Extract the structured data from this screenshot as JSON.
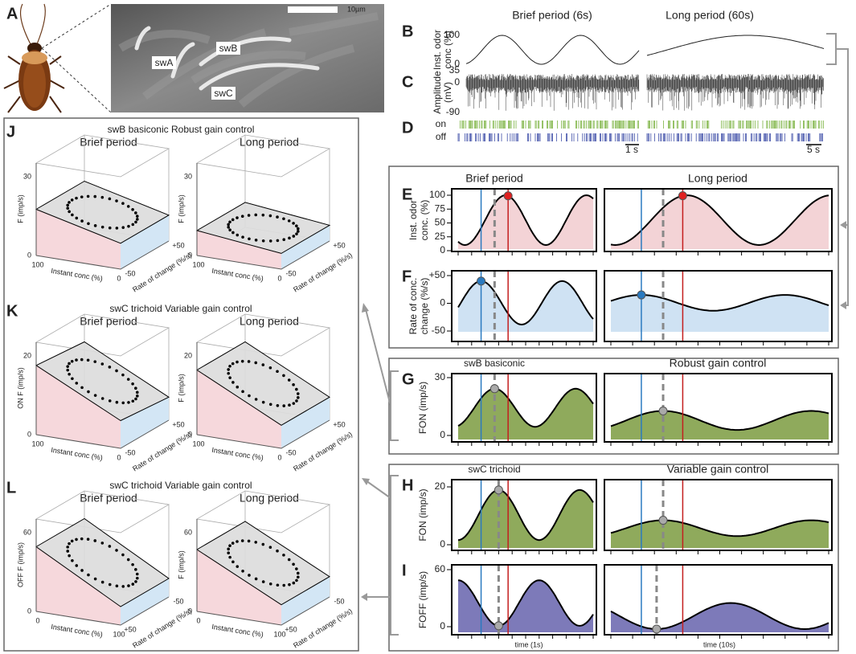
{
  "panel_A": {
    "letter": "A",
    "scale_bar": "10µm",
    "hair_labels": [
      "swA",
      "swB",
      "swC"
    ]
  },
  "panel_B": {
    "letter": "B",
    "titles": [
      "Brief period (6s)",
      "Long period (60s)"
    ],
    "y_label_lines": [
      "Inst. odor",
      "conc (%)"
    ],
    "yticks": [
      "100",
      "0"
    ]
  },
  "panel_C": {
    "letter": "C",
    "y_label_lines": [
      "Amplitude",
      "(mV)"
    ],
    "yticks": [
      "35",
      "0",
      "-90"
    ]
  },
  "panel_D": {
    "letter": "D",
    "rows": [
      "on",
      "off"
    ],
    "scale_bars": [
      "1 s",
      "5 s"
    ]
  },
  "panel_E": {
    "letter": "E",
    "titles": [
      "Brief period",
      "Long period"
    ],
    "y_label_lines": [
      "Inst. odor",
      "conc. (%)"
    ],
    "yticks": [
      "100",
      "75",
      "50",
      "25",
      "0"
    ]
  },
  "panel_F": {
    "letter": "F",
    "y_label_lines": [
      "Rate of conc.",
      "change (%/s)"
    ],
    "yticks": [
      "+50",
      "0",
      "-50"
    ]
  },
  "panel_G": {
    "letter": "G",
    "titles": [
      "swB basiconic",
      "Robust gain control"
    ],
    "y_label": "FON (imp/s)",
    "yticks": [
      "30",
      "0"
    ]
  },
  "panel_H": {
    "letter": "H",
    "titles": [
      "swC trichoid",
      "Variable gain control"
    ],
    "y_label": "FON (imp/s)",
    "yticks": [
      "20",
      "0"
    ]
  },
  "panel_I": {
    "letter": "I",
    "y_label": "FOFF (imp/s)",
    "yticks": [
      "60",
      "0"
    ],
    "x_labels": [
      "time (1s)",
      "time (10s)"
    ]
  },
  "panel_J": {
    "letter": "J",
    "title": "swB basiconic Robust gain control",
    "subtitles": [
      "Brief period",
      "Long period"
    ],
    "z_labels": [
      "F (imp/s)",
      "F (imp/s)"
    ],
    "zticks": [
      "30",
      "0"
    ],
    "x_label": "Instant conc (%)",
    "x_ticks": [
      "100",
      "0"
    ],
    "y_label": "Rate of change (%/s)",
    "y_ticks": [
      "-50",
      "+50"
    ]
  },
  "panel_K": {
    "letter": "K",
    "title": "swC trichoid Variable gain control",
    "subtitles": [
      "Brief period",
      "Long period"
    ],
    "z_labels": [
      "ON F (imp/s)",
      "F (imp/s)"
    ],
    "zticks": [
      "20",
      "0"
    ],
    "x_label": "Instant conc (%)",
    "x_ticks": [
      "100",
      "0"
    ],
    "y_label": "Rate of change (%/s)",
    "y_ticks": [
      "-50",
      "+50"
    ]
  },
  "panel_L": {
    "letter": "L",
    "title": "swC trichoid Variable gain control",
    "subtitles": [
      "Brief period",
      "Long period"
    ],
    "z_labels": [
      "OFF F (imp/s)",
      "F (imp/s)"
    ],
    "zticks": [
      "60",
      "0"
    ],
    "x_label": "Instant conc (%)",
    "x_ticks": [
      "0",
      "100"
    ],
    "y_label": "Rate of change (%/s)",
    "y_ticks": [
      "+50",
      "-50"
    ]
  }
}
